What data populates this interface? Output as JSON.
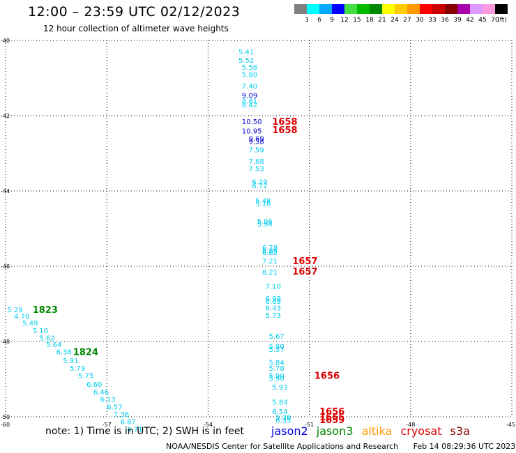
{
  "header": {
    "title": "12:00 – 23:59 UTC 02/12/2023",
    "subtitle": "12 hour collection of altimeter wave heights"
  },
  "legend": {
    "labels": [
      "3",
      "6",
      "9",
      "12",
      "15",
      "18",
      "21",
      "24",
      "27",
      "30",
      "33",
      "36",
      "39",
      "42",
      "45",
      "70"
    ],
    "unit": "(ft)",
    "colors": [
      "#808080",
      "#00ffff",
      "#00aaff",
      "#0000ff",
      "#44dd44",
      "#00bb00",
      "#008800",
      "#ffff00",
      "#ffcc00",
      "#ff9900",
      "#ff0000",
      "#cc0000",
      "#880000",
      "#aa00aa",
      "#dd99ff",
      "#ff99dd",
      "#000000"
    ]
  },
  "axes": {
    "lat_ticks": [
      "-40",
      "-42",
      "-44",
      "-46",
      "-48",
      "-50"
    ],
    "lon_ticks": [
      "-60",
      "-57",
      "-54",
      "-51",
      "-48",
      "-45"
    ],
    "lat_range": [
      -50,
      -40
    ],
    "lon_range": [
      -60,
      -45
    ]
  },
  "observations": [
    {
      "lon": -53.1,
      "lat": -40.3,
      "v": "5.41",
      "c": "#00ccee"
    },
    {
      "lon": -53.1,
      "lat": -40.52,
      "v": "5.52",
      "c": "#00ccee"
    },
    {
      "lon": -53.0,
      "lat": -40.7,
      "v": "5.58",
      "c": "#00ccee"
    },
    {
      "lon": -53.0,
      "lat": -40.9,
      "v": "5.80",
      "c": "#00ccee"
    },
    {
      "lon": -53.0,
      "lat": -41.2,
      "v": "7.40",
      "c": "#00ccee"
    },
    {
      "lon": -53.0,
      "lat": -41.45,
      "v": "9.09",
      "c": "#0000cc"
    },
    {
      "lon": -53.0,
      "lat": -41.6,
      "v": "8.81",
      "c": "#00ccee"
    },
    {
      "lon": -53.0,
      "lat": -41.7,
      "v": "8.42",
      "c": "#00ccee"
    },
    {
      "lon": -53.0,
      "lat": -42.15,
      "v": "10.50",
      "c": "#0000cc"
    },
    {
      "lon": -53.0,
      "lat": -42.4,
      "v": "10.95",
      "c": "#0000cc"
    },
    {
      "lon": -52.8,
      "lat": -42.6,
      "v": "9.69",
      "c": "#0000cc"
    },
    {
      "lon": -52.8,
      "lat": -42.68,
      "v": "9.38",
      "c": "#0000cc"
    },
    {
      "lon": -52.8,
      "lat": -42.9,
      "v": "7.59",
      "c": "#00ccee"
    },
    {
      "lon": -52.8,
      "lat": -43.2,
      "v": "7.68",
      "c": "#00ccee"
    },
    {
      "lon": -52.8,
      "lat": -43.4,
      "v": "7.53",
      "c": "#00ccee"
    },
    {
      "lon": -52.7,
      "lat": -43.75,
      "v": "6.29",
      "c": "#00ccee"
    },
    {
      "lon": -52.7,
      "lat": -43.85,
      "v": "6.72",
      "c": "#00ccee"
    },
    {
      "lon": -52.6,
      "lat": -44.25,
      "v": "5.48",
      "c": "#00ccee"
    },
    {
      "lon": -52.6,
      "lat": -44.32,
      "v": "5.16",
      "c": "#00ccee"
    },
    {
      "lon": -52.55,
      "lat": -44.8,
      "v": "5.96",
      "c": "#00ccee"
    },
    {
      "lon": -52.55,
      "lat": -44.87,
      "v": "5.94",
      "c": "#00ccee"
    },
    {
      "lon": -52.4,
      "lat": -45.5,
      "v": "6.78",
      "c": "#00ccee"
    },
    {
      "lon": -52.4,
      "lat": -45.58,
      "v": "5.86",
      "c": "#00ccee"
    },
    {
      "lon": -52.4,
      "lat": -45.63,
      "v": "6.62",
      "c": "#00ccee"
    },
    {
      "lon": -52.4,
      "lat": -45.85,
      "v": "7.21",
      "c": "#00ccee"
    },
    {
      "lon": -52.4,
      "lat": -46.15,
      "v": "8.21",
      "c": "#00ccee"
    },
    {
      "lon": -52.3,
      "lat": -46.53,
      "v": "7.10",
      "c": "#00ccee"
    },
    {
      "lon": -52.3,
      "lat": -46.85,
      "v": "6.98",
      "c": "#00ccee"
    },
    {
      "lon": -52.3,
      "lat": -46.93,
      "v": "6.69",
      "c": "#00ccee"
    },
    {
      "lon": -52.3,
      "lat": -47.1,
      "v": "6.43",
      "c": "#00ccee"
    },
    {
      "lon": -52.3,
      "lat": -47.3,
      "v": "5.73",
      "c": "#00ccee"
    },
    {
      "lon": -52.2,
      "lat": -47.85,
      "v": "5.67",
      "c": "#00ccee"
    },
    {
      "lon": -52.2,
      "lat": -48.12,
      "v": "5.80",
      "c": "#00ccee"
    },
    {
      "lon": -52.2,
      "lat": -48.2,
      "v": "5.37",
      "c": "#00ccee"
    },
    {
      "lon": -52.2,
      "lat": -48.55,
      "v": "5.84",
      "c": "#00ccee"
    },
    {
      "lon": -52.2,
      "lat": -48.7,
      "v": "5.78",
      "c": "#00ccee"
    },
    {
      "lon": -52.2,
      "lat": -48.9,
      "v": "5.90",
      "c": "#00ccee"
    },
    {
      "lon": -52.2,
      "lat": -48.97,
      "v": "5.90",
      "c": "#00ccee"
    },
    {
      "lon": -52.1,
      "lat": -49.2,
      "v": "5.93",
      "c": "#00ccee"
    },
    {
      "lon": -52.1,
      "lat": -49.6,
      "v": "5.84",
      "c": "#00ccee"
    },
    {
      "lon": -52.1,
      "lat": -49.85,
      "v": "6.54",
      "c": "#00ccee"
    },
    {
      "lon": -52.0,
      "lat": -50.0,
      "v": "5.36",
      "c": "#00ccee"
    },
    {
      "lon": -52.0,
      "lat": -50.08,
      "v": "6.35",
      "c": "#00ccee"
    },
    {
      "lon": -59.95,
      "lat": -47.15,
      "v": "5.29",
      "c": "#00ccee"
    },
    {
      "lon": -59.75,
      "lat": -47.32,
      "v": "4.70",
      "c": "#00ccee"
    },
    {
      "lon": -59.5,
      "lat": -47.5,
      "v": "5.49",
      "c": "#00ccee"
    },
    {
      "lon": -59.2,
      "lat": -47.7,
      "v": "5.10",
      "c": "#00ccee"
    },
    {
      "lon": -59.0,
      "lat": -47.9,
      "v": "5.62",
      "c": "#00ccee"
    },
    {
      "lon": -58.8,
      "lat": -48.07,
      "v": "5.64",
      "c": "#00ccee"
    },
    {
      "lon": -58.5,
      "lat": -48.27,
      "v": "6.38",
      "c": "#00ccee"
    },
    {
      "lon": -58.3,
      "lat": -48.5,
      "v": "5.91",
      "c": "#00ccee"
    },
    {
      "lon": -58.1,
      "lat": -48.7,
      "v": "5.79",
      "c": "#00ccee"
    },
    {
      "lon": -57.85,
      "lat": -48.9,
      "v": "5.75",
      "c": "#00ccee"
    },
    {
      "lon": -57.6,
      "lat": -49.13,
      "v": "6.60",
      "c": "#00ccee"
    },
    {
      "lon": -57.4,
      "lat": -49.33,
      "v": "6.46",
      "c": "#00ccee"
    },
    {
      "lon": -57.2,
      "lat": -49.53,
      "v": "6.13",
      "c": "#00ccee"
    },
    {
      "lon": -57.0,
      "lat": -49.73,
      "v": "6.57",
      "c": "#00ccee"
    },
    {
      "lon": -56.8,
      "lat": -49.93,
      "v": "7.36",
      "c": "#00ccee"
    },
    {
      "lon": -56.6,
      "lat": -50.12,
      "v": "6.87",
      "c": "#00ccee"
    },
    {
      "lon": -56.4,
      "lat": -50.32,
      "v": "6.71",
      "c": "#00ccee"
    }
  ],
  "time_labels": [
    {
      "lon": -52.1,
      "lat": -42.15,
      "t": "1658",
      "c": "#dd0000"
    },
    {
      "lon": -52.1,
      "lat": -42.37,
      "t": "1658",
      "c": "#dd0000"
    },
    {
      "lon": -51.5,
      "lat": -45.85,
      "t": "1657",
      "c": "#dd0000"
    },
    {
      "lon": -51.5,
      "lat": -46.13,
      "t": "1657",
      "c": "#dd0000"
    },
    {
      "lon": -50.85,
      "lat": -48.9,
      "t": "1656",
      "c": "#dd0000"
    },
    {
      "lon": -50.7,
      "lat": -49.85,
      "t": "1656",
      "c": "#dd0000"
    },
    {
      "lon": -50.7,
      "lat": -50.0,
      "t": "1655",
      "c": "#dd0000"
    },
    {
      "lon": -50.7,
      "lat": -50.07,
      "t": "1659",
      "c": "#dd0000"
    },
    {
      "lon": -59.2,
      "lat": -47.15,
      "t": "1823",
      "c": "#008800"
    },
    {
      "lon": -58.0,
      "lat": -48.27,
      "t": "1824",
      "c": "#008800"
    }
  ],
  "note": "note:  1) Time is in UTC; 2) SWH is in feet",
  "satellites": [
    {
      "name": "jason2",
      "color": "#0000dd"
    },
    {
      "name": "jason3",
      "color": "#008800"
    },
    {
      "name": "altika",
      "color": "#ff9900"
    },
    {
      "name": "cryosat",
      "color": "#dd0000"
    },
    {
      "name": "s3a",
      "color": "#880000"
    }
  ],
  "footer": {
    "agency": "NOAA/NESDIS Center for Satellite Applications and Research",
    "timestamp": "Feb 14 08:29:36 UTC 2023"
  }
}
